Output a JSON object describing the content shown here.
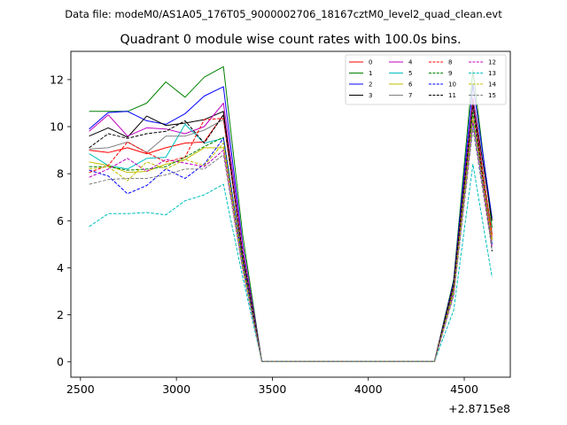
{
  "suptitle": "Data file: modeM0/AS1A05_176T05_9000002706_18167cztM0_level2_quad_clean.evt",
  "chart_data": {
    "type": "line",
    "title": "Quadrant 0 module wise count rates with 100.0s bins.",
    "xlabel": "",
    "ylabel": "",
    "x_offset_label": "+2.8715e8",
    "xlim": [
      2450,
      4740
    ],
    "ylim": [
      -0.65,
      13.2
    ],
    "x_ticks": [
      2500,
      3000,
      3500,
      4000,
      4500
    ],
    "x_tick_labels": [
      "2500",
      "3000",
      "3500",
      "4000",
      "4500"
    ],
    "y_ticks": [
      0,
      2,
      4,
      6,
      8,
      10,
      12
    ],
    "y_tick_labels": [
      "0",
      "2",
      "4",
      "6",
      "8",
      "10",
      "12"
    ],
    "grid": false,
    "legend_location": "top-right",
    "legend_columns": 4,
    "x": [
      2545,
      2645,
      2745,
      2845,
      2945,
      3045,
      3145,
      3245,
      3345,
      3445,
      3545,
      3645,
      3745,
      3845,
      3945,
      4045,
      4145,
      4245,
      4345,
      4445,
      4545,
      4645
    ],
    "series": [
      {
        "name": "0",
        "color": "#ff0000",
        "dash": "solid",
        "values": [
          9.0,
          8.9,
          9.1,
          8.85,
          9.1,
          9.3,
          9.35,
          10.5,
          4.5,
          0.02,
          0.02,
          0.02,
          0.02,
          0.02,
          0.02,
          0.02,
          0.02,
          0.02,
          0.02,
          3.2,
          10.9,
          5.3
        ]
      },
      {
        "name": "1",
        "color": "#008000",
        "dash": "solid",
        "values": [
          10.65,
          10.65,
          10.65,
          11.0,
          11.9,
          11.25,
          12.1,
          12.55,
          5.4,
          0.02,
          0.02,
          0.02,
          0.02,
          0.02,
          0.02,
          0.02,
          0.02,
          0.02,
          0.02,
          3.5,
          12.4,
          5.7
        ]
      },
      {
        "name": "2",
        "color": "#0000ff",
        "dash": "solid",
        "values": [
          9.9,
          10.6,
          10.65,
          10.25,
          10.1,
          10.55,
          11.3,
          11.7,
          5.0,
          0.02,
          0.02,
          0.02,
          0.02,
          0.02,
          0.02,
          0.02,
          0.02,
          0.02,
          0.02,
          3.4,
          11.8,
          6.1
        ]
      },
      {
        "name": "3",
        "color": "#000000",
        "dash": "solid",
        "values": [
          9.6,
          9.95,
          9.55,
          10.45,
          10.05,
          10.15,
          10.3,
          10.65,
          4.5,
          0.02,
          0.02,
          0.02,
          0.02,
          0.02,
          0.02,
          0.02,
          0.02,
          0.02,
          0.02,
          3.3,
          11.2,
          6.0
        ]
      },
      {
        "name": "4",
        "color": "#bf00bf",
        "dash": "solid",
        "values": [
          9.8,
          10.5,
          9.6,
          9.95,
          9.9,
          9.7,
          10.0,
          11.0,
          4.9,
          0.02,
          0.02,
          0.02,
          0.02,
          0.02,
          0.02,
          0.02,
          0.02,
          0.02,
          0.02,
          3.3,
          11.2,
          5.2
        ]
      },
      {
        "name": "5",
        "color": "#00bfbf",
        "dash": "solid",
        "values": [
          8.85,
          8.35,
          8.2,
          8.65,
          8.7,
          10.1,
          9.3,
          9.5,
          4.3,
          0.02,
          0.02,
          0.02,
          0.02,
          0.02,
          0.02,
          0.02,
          0.02,
          0.02,
          0.02,
          3.0,
          10.2,
          5.0
        ]
      },
      {
        "name": "6",
        "color": "#bfbf00",
        "dash": "solid",
        "values": [
          8.5,
          8.35,
          8.05,
          8.1,
          8.4,
          8.6,
          9.1,
          9.1,
          4.2,
          0.02,
          0.02,
          0.02,
          0.02,
          0.02,
          0.02,
          0.02,
          0.02,
          0.02,
          0.02,
          3.0,
          10.3,
          5.2
        ]
      },
      {
        "name": "7",
        "color": "#808080",
        "dash": "solid",
        "values": [
          9.05,
          9.1,
          9.35,
          8.9,
          9.6,
          9.6,
          9.85,
          10.3,
          4.6,
          0.02,
          0.02,
          0.02,
          0.02,
          0.02,
          0.02,
          0.02,
          0.02,
          0.02,
          0.02,
          3.2,
          10.8,
          5.5
        ]
      },
      {
        "name": "8",
        "color": "#ff0000",
        "dash": "dashed",
        "values": [
          8.05,
          8.35,
          9.35,
          8.9,
          8.5,
          8.7,
          10.3,
          10.35,
          4.5,
          0.02,
          0.02,
          0.02,
          0.02,
          0.02,
          0.02,
          0.02,
          0.02,
          0.02,
          0.02,
          3.2,
          11.0,
          5.4
        ]
      },
      {
        "name": "9",
        "color": "#008000",
        "dash": "dashed",
        "values": [
          8.3,
          8.3,
          8.15,
          8.2,
          8.3,
          8.7,
          9.15,
          9.55,
          4.3,
          0.02,
          0.02,
          0.02,
          0.02,
          0.02,
          0.02,
          0.02,
          0.02,
          0.02,
          0.02,
          3.1,
          10.6,
          5.1
        ]
      },
      {
        "name": "10",
        "color": "#0000ff",
        "dash": "dashed",
        "values": [
          8.15,
          7.9,
          7.15,
          7.5,
          8.2,
          7.8,
          8.4,
          9.5,
          4.2,
          0.02,
          0.02,
          0.02,
          0.02,
          0.02,
          0.02,
          0.02,
          0.02,
          0.02,
          0.02,
          3.0,
          10.2,
          5.0
        ]
      },
      {
        "name": "11",
        "color": "#000000",
        "dash": "dashed",
        "values": [
          9.1,
          9.7,
          9.5,
          9.7,
          9.8,
          10.25,
          9.3,
          10.5,
          4.6,
          0.02,
          0.02,
          0.02,
          0.02,
          0.02,
          0.02,
          0.02,
          0.02,
          0.02,
          0.02,
          3.3,
          11.0,
          4.7
        ]
      },
      {
        "name": "12",
        "color": "#bf00bf",
        "dash": "dashed",
        "values": [
          7.85,
          8.2,
          8.65,
          8.1,
          8.6,
          8.45,
          8.3,
          9.0,
          4.0,
          0.02,
          0.02,
          0.02,
          0.02,
          0.02,
          0.02,
          0.02,
          0.02,
          0.02,
          0.02,
          2.9,
          10.3,
          4.9
        ]
      },
      {
        "name": "13",
        "color": "#00bfbf",
        "dash": "dashed",
        "values": [
          5.75,
          6.3,
          6.3,
          6.35,
          6.25,
          6.85,
          7.1,
          7.55,
          3.6,
          0.02,
          0.02,
          0.02,
          0.02,
          0.02,
          0.02,
          0.02,
          0.02,
          0.02,
          0.02,
          2.2,
          8.4,
          3.6
        ]
      },
      {
        "name": "14",
        "color": "#bfbf00",
        "dash": "dashed",
        "values": [
          8.2,
          8.3,
          7.7,
          8.5,
          8.2,
          8.6,
          8.35,
          9.3,
          4.1,
          0.02,
          0.02,
          0.02,
          0.02,
          0.02,
          0.02,
          0.02,
          0.02,
          0.02,
          0.02,
          3.0,
          10.4,
          5.1
        ]
      },
      {
        "name": "15",
        "color": "#808080",
        "dash": "dashed",
        "values": [
          7.55,
          7.75,
          7.8,
          7.8,
          7.95,
          8.2,
          8.2,
          8.8,
          3.9,
          0.02,
          0.02,
          0.02,
          0.02,
          0.02,
          0.02,
          0.02,
          0.02,
          0.02,
          0.02,
          2.8,
          9.9,
          4.8
        ]
      }
    ]
  }
}
